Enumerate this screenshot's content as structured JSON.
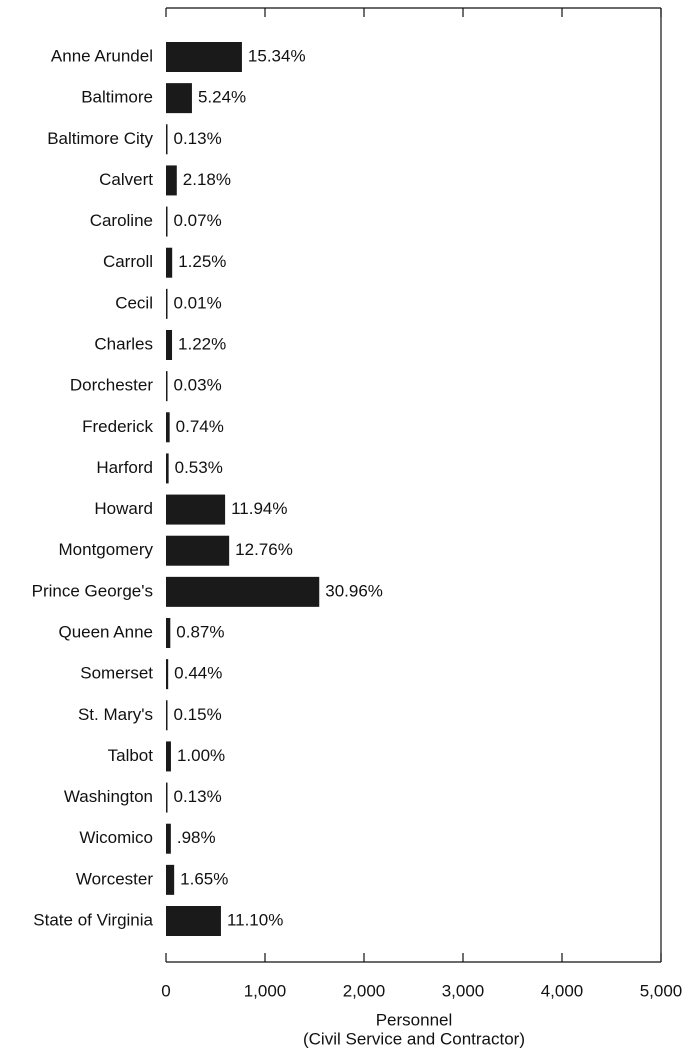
{
  "chart_data": {
    "type": "barh",
    "categories": [
      "Anne Arundel",
      "Baltimore",
      "Baltimore City",
      "Calvert",
      "Caroline",
      "Carroll",
      "Cecil",
      "Charles",
      "Dorchester",
      "Frederick",
      "Harford",
      "Howard",
      "Montgomery",
      "Prince George's",
      "Queen Anne",
      "Somerset",
      "St. Mary's",
      "Talbot",
      "Washington",
      "Wicomico",
      "Worcester",
      "State of Virginia"
    ],
    "values": [
      767,
      262,
      6.5,
      109,
      3.5,
      62.5,
      0.5,
      61,
      1.5,
      37,
      26.5,
      597,
      638,
      1548,
      43.5,
      22,
      7.5,
      50,
      6.5,
      49,
      82.5,
      555
    ],
    "value_labels": [
      "15.34%",
      "5.24%",
      "0.13%",
      "2.18%",
      "0.07%",
      "1.25%",
      "0.01%",
      "1.22%",
      "0.03%",
      "0.74%",
      "0.53%",
      "11.94%",
      "12.76%",
      "30.96%",
      "0.87%",
      "0.44%",
      "0.15%",
      "1.00%",
      "0.13%",
      ".98%",
      "1.65%",
      "11.10%"
    ],
    "color": "#1a1a1a",
    "xlim": [
      0,
      5000
    ],
    "xticks": [
      0,
      {
        "value": 1000,
        "label": "1,000"
      },
      {
        "value": 2000,
        "label": "2,000"
      },
      {
        "value": 3000,
        "label": "3,000"
      },
      {
        "value": 4000,
        "label": "4,000"
      },
      {
        "value": 5000,
        "label": "5,000"
      }
    ],
    "xlabel": [
      "Personnel",
      "(Civil Service and Contractor)"
    ]
  }
}
